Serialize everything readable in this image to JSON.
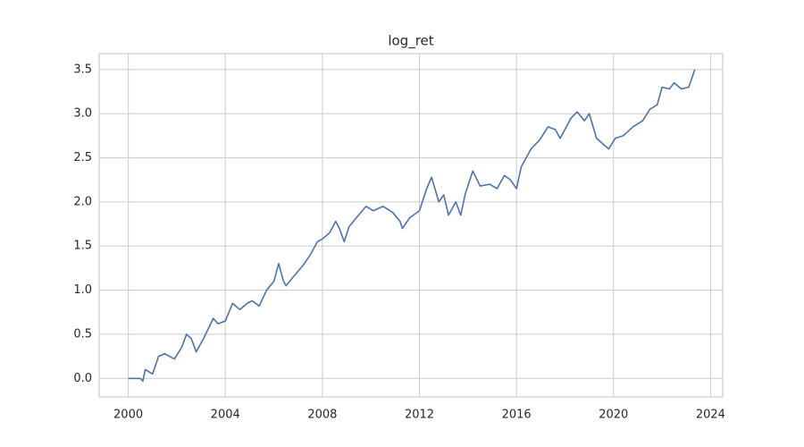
{
  "chart_data": {
    "type": "line",
    "title": "log_ret",
    "color": "#4c72b0",
    "grid": true,
    "x": [
      2000,
      2000.5,
      2000.6,
      2000.7,
      2001.0,
      2001.25,
      2001.5,
      2001.9,
      2002.2,
      2002.4,
      2002.6,
      2002.8,
      2003.1,
      2003.5,
      2003.7,
      2004.0,
      2004.3,
      2004.6,
      2004.9,
      2005.1,
      2005.4,
      2005.7,
      2006.0,
      2006.2,
      2006.4,
      2006.5,
      2006.8,
      2007.2,
      2007.5,
      2007.8,
      2008.0,
      2008.3,
      2008.55,
      2008.7,
      2008.9,
      2009.1,
      2009.4,
      2009.8,
      2010.1,
      2010.5,
      2010.9,
      2011.2,
      2011.3,
      2011.6,
      2012.0,
      2012.3,
      2012.5,
      2012.8,
      2013.0,
      2013.2,
      2013.5,
      2013.7,
      2013.9,
      2014.2,
      2014.5,
      2014.9,
      2015.2,
      2015.5,
      2015.75,
      2016.0,
      2016.2,
      2016.6,
      2016.95,
      2017.3,
      2017.6,
      2017.8,
      2018.25,
      2018.5,
      2018.8,
      2019.0,
      2019.3,
      2019.8,
      2020.07,
      2020.4,
      2020.8,
      2021.2,
      2021.5,
      2021.8,
      2022.0,
      2022.3,
      2022.5,
      2022.8,
      2023.1,
      2023.35
    ],
    "values": [
      0,
      0,
      -0.03,
      0.1,
      0.05,
      0.25,
      0.28,
      0.22,
      0.35,
      0.5,
      0.45,
      0.3,
      0.45,
      0.68,
      0.62,
      0.65,
      0.85,
      0.78,
      0.85,
      0.88,
      0.82,
      1.0,
      1.1,
      1.3,
      1.1,
      1.05,
      1.15,
      1.28,
      1.4,
      1.55,
      1.58,
      1.65,
      1.78,
      1.7,
      1.55,
      1.72,
      1.82,
      1.95,
      1.9,
      1.95,
      1.88,
      1.78,
      1.7,
      1.82,
      1.9,
      2.15,
      2.28,
      2.0,
      2.08,
      1.85,
      2.0,
      1.85,
      2.1,
      2.35,
      2.18,
      2.2,
      2.15,
      2.3,
      2.25,
      2.15,
      2.4,
      2.6,
      2.7,
      2.85,
      2.82,
      2.72,
      2.95,
      3.02,
      2.92,
      3.0,
      2.72,
      2.6,
      2.72,
      2.75,
      2.85,
      2.92,
      3.05,
      3.1,
      3.3,
      3.28,
      3.35,
      3.28,
      3.3,
      3.5
    ],
    "xlim": [
      1998.8,
      2024.5
    ],
    "xticks": [
      2000,
      2004,
      2008,
      2012,
      2016,
      2020,
      2024
    ],
    "ylim": [
      -0.21,
      3.68
    ],
    "yticks": [
      {
        "value": 0,
        "label": "0.0"
      },
      0.5,
      {
        "value": 1,
        "label": "1.0"
      },
      1.5,
      {
        "value": 2,
        "label": "2.0"
      },
      2.5,
      {
        "value": 3,
        "label": "3.0"
      },
      3.5
    ]
  }
}
